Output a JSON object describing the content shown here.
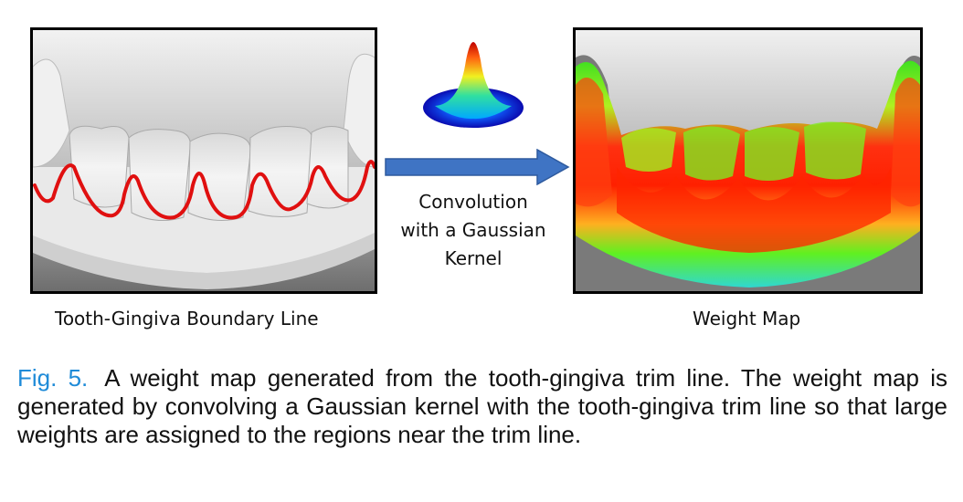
{
  "left_panel": {
    "label": "Tooth-Gingiva Boundary Line"
  },
  "right_panel": {
    "label": "Weight Map"
  },
  "arrow_text": {
    "line1": "Convolution",
    "line2": "with a Gaussian",
    "line3": "Kernel"
  },
  "caption": {
    "fig_label": "Fig. 5.",
    "text": "A weight map generated from the tooth-gingiva trim line. The weight map is generated by convolving a Gaussian kernel with the tooth-gingiva trim line so that large weights are assigned to the regions near the trim line."
  },
  "colors": {
    "trim_line": "#e01010",
    "arrow": "#3f74c4",
    "fig_label": "#1f8bd8",
    "background_gray": "#8c8c8c"
  }
}
